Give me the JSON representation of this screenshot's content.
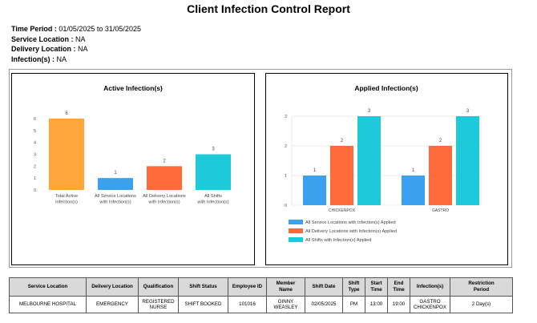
{
  "report": {
    "title": "Client Infection Control Report",
    "filters": [
      {
        "label": "Time Period :",
        "value": " 01/05/2025 to 31/05/2025"
      },
      {
        "label": "Service Location :",
        "value": " NA"
      },
      {
        "label": "Delivery Location :",
        "value": " NA"
      },
      {
        "label": "Infection(s) :",
        "value": " NA"
      }
    ]
  },
  "chart_data": [
    {
      "type": "bar",
      "title": "Active Infection(s)",
      "categories": [
        [
          "Total Active",
          "Infection(s)"
        ],
        [
          "All Service Locations",
          "with Infection(s)"
        ],
        [
          "All Delivery Locations",
          "with Infection(s)"
        ],
        [
          "All Shifts",
          "with Infection(s)"
        ]
      ],
      "values": [
        6,
        1,
        2,
        3
      ],
      "data_labels": [
        "6",
        "1",
        "2",
        "3"
      ],
      "bar_colors": [
        "#ffa53a",
        "#3ba0ee",
        "#ff6b3b",
        "#1ec9d9"
      ],
      "ylim": [
        0,
        6
      ],
      "yticks": [
        "0",
        "1",
        "2",
        "3",
        "4",
        "5",
        "6"
      ],
      "grid": false,
      "legend": "none"
    },
    {
      "type": "bar",
      "title": "Applied Infection(s)",
      "categories": [
        "CHICKENPOX",
        "GASTRO"
      ],
      "series": [
        {
          "name": "All Service Locations with Infection(s) Applied",
          "values": [
            1,
            1
          ],
          "color": "#3ba0ee"
        },
        {
          "name": "All Delivery Locations with Infection(s) Applied",
          "values": [
            2,
            2
          ],
          "color": "#ff6b3b"
        },
        {
          "name": "All Shifts with Infection(s) Applied",
          "values": [
            3,
            3
          ],
          "color": "#1ec9d9"
        }
      ],
      "ylim": [
        0,
        3
      ],
      "yticks": [
        "0",
        "1",
        "2",
        "3"
      ],
      "grid": true,
      "legend": "bottom"
    }
  ],
  "table": {
    "columns": [
      [
        "Service Location"
      ],
      [
        "Delivery Location"
      ],
      [
        "Qualification"
      ],
      [
        "Shift Status"
      ],
      [
        "Employee ID"
      ],
      [
        "Member",
        "Name"
      ],
      [
        "Shift Date"
      ],
      [
        "Shift",
        "Type"
      ],
      [
        "Start",
        "Time"
      ],
      [
        "End",
        "Time"
      ],
      [
        "Infection(s)"
      ],
      [
        "Restriction",
        "Period"
      ]
    ],
    "rows": [
      [
        [
          "MELBOURNE HOSPITAL"
        ],
        [
          "EMERGENCY"
        ],
        [
          "REGISTERED",
          "NURSE"
        ],
        [
          "SHIFT BOOKED"
        ],
        [
          "101016"
        ],
        [
          "GINNY",
          "WEASLEY"
        ],
        [
          "02/05/2025"
        ],
        [
          "PM"
        ],
        [
          "13:00"
        ],
        [
          "19:00"
        ],
        [
          "GASTRO",
          "CHICKENPOX"
        ],
        [
          "2 Day(s)"
        ]
      ]
    ]
  }
}
